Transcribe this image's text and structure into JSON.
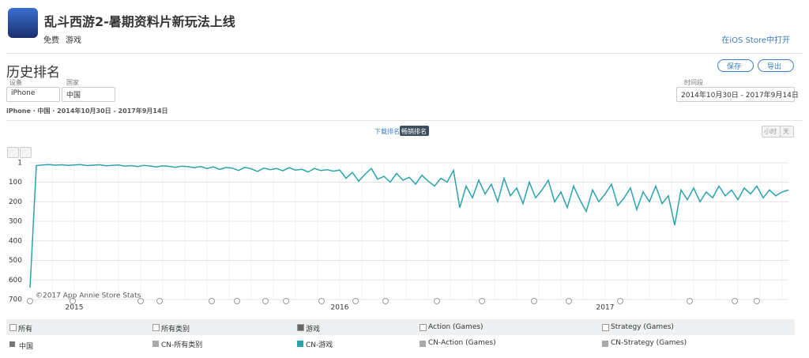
{
  "header": {
    "title": "乱斗西游2-暑期资料片新玩法上线",
    "price": "免费",
    "category": "游戏",
    "store_link": "在iOS Store中打开"
  },
  "section_title": "历史排名",
  "buttons": {
    "save": "保存",
    "export": "导出"
  },
  "filters": {
    "device_label": "设备",
    "device": "iPhone",
    "country_label": "国家",
    "country": "中国",
    "period_label": "时间段",
    "period": "2014年10月30日 - 2017年9月14日"
  },
  "breadcrumb": "iPhone · 中国 · 2014年10月30日 - 2017年9月14日",
  "tabs": [
    "下载排名",
    "畅销排名"
  ],
  "granularity": [
    "小时",
    "天"
  ],
  "chart_data": {
    "type": "line",
    "credit": "©2017 App Annie Store Stats",
    "categories": [
      null,
      null,
      null,
      null,
      null,
      null,
      null,
      "2015",
      null,
      null,
      null,
      null,
      null,
      null,
      null,
      null,
      null,
      null,
      null,
      null,
      null,
      null,
      null,
      null,
      null,
      null,
      null,
      null,
      null,
      null,
      null,
      null,
      null,
      null,
      null,
      null,
      null,
      null,
      null,
      null,
      null,
      null,
      null,
      null,
      null,
      null,
      null,
      null,
      null,
      "2016",
      null,
      null,
      null,
      null,
      null,
      null,
      null,
      null,
      null,
      null,
      null,
      null,
      null,
      null,
      null,
      null,
      null,
      null,
      null,
      null,
      null,
      null,
      null,
      null,
      null,
      null,
      null,
      null,
      null,
      null,
      null,
      null,
      null,
      null,
      null,
      null,
      null,
      null,
      null,
      null,
      null,
      "2017",
      null,
      null,
      null,
      null,
      null,
      null,
      null,
      null,
      null,
      null,
      null,
      null,
      null,
      null,
      null,
      null,
      null,
      null,
      null,
      null,
      null,
      null,
      null,
      null,
      null,
      null,
      null,
      null,
      null
    ],
    "series": [
      {
        "name": "CN-游戏",
        "color": "#2aa3ad",
        "values": [
          640,
          15,
          12,
          10,
          13,
          11,
          14,
          12,
          10,
          15,
          13,
          11,
          16,
          14,
          12,
          18,
          15,
          20,
          14,
          17,
          22,
          16,
          19,
          24,
          18,
          21,
          26,
          20,
          30,
          22,
          35,
          25,
          28,
          40,
          24,
          32,
          45,
          28,
          36,
          30,
          42,
          26,
          38,
          34,
          48,
          30,
          40,
          36,
          44,
          38,
          80,
          50,
          95,
          60,
          30,
          85,
          70,
          100,
          55,
          90,
          75,
          110,
          65,
          95,
          120,
          80,
          100,
          40,
          230,
          120,
          180,
          90,
          160,
          110,
          200,
          80,
          170,
          130,
          210,
          100,
          180,
          140,
          90,
          200,
          150,
          230,
          120,
          190,
          250,
          140,
          200,
          160,
          110,
          220,
          180,
          130,
          240,
          150,
          200,
          120,
          210,
          170,
          320,
          140,
          190,
          130,
          200,
          150,
          180,
          120,
          170,
          140,
          190,
          130,
          160,
          120,
          180,
          140,
          170,
          150,
          140
        ]
      }
    ],
    "ylim": [
      700,
      1
    ],
    "yticks": [
      1,
      100,
      200,
      300,
      400,
      500,
      600,
      700
    ],
    "grid": true
  },
  "legend_table": {
    "headers": [
      "所有",
      "所有类别",
      "游戏",
      "Action (Games)",
      "Strategy (Games)"
    ],
    "country": "中国",
    "items": [
      "CN-所有类别",
      "CN-Action (Games)",
      "CN-Strategy (Games)"
    ]
  }
}
